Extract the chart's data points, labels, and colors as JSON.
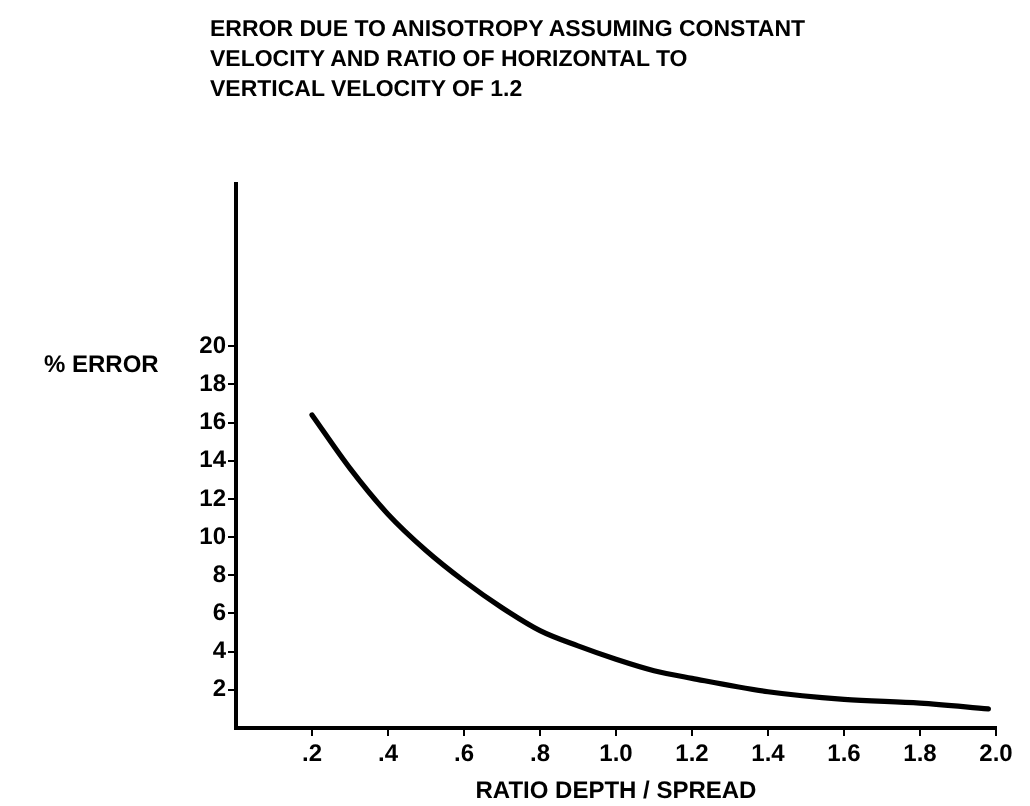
{
  "chart_data": {
    "type": "line",
    "title": "ERROR DUE TO ANISOTROPY ASSUMING CONSTANT\nVELOCITY AND RATIO OF HORIZONTAL TO\nVERTICAL VELOCITY OF 1.2",
    "xlabel": "RATIO DEPTH / SPREAD",
    "ylabel": "% ERROR",
    "x": [
      0.2,
      0.3,
      0.4,
      0.5,
      0.6,
      0.7,
      0.8,
      0.9,
      1.0,
      1.1,
      1.2,
      1.4,
      1.6,
      1.8,
      1.98
    ],
    "series": [
      {
        "color": "#000000",
        "values": [
          16.4,
          13.6,
          11.2,
          9.3,
          7.7,
          6.3,
          5.1,
          4.3,
          3.6,
          3.0,
          2.6,
          1.9,
          1.5,
          1.3,
          1.0
        ]
      }
    ],
    "xlim": [
      0,
      2.0
    ],
    "ylim": [
      0,
      28.5
    ],
    "xticks": [
      {
        "value": 0.2,
        "label": ".2"
      },
      {
        "value": 0.4,
        "label": ".4"
      },
      {
        "value": 0.6,
        "label": ".6"
      },
      {
        "value": 0.8,
        "label": ".8"
      },
      {
        "value": 1.0,
        "label": "1.0"
      },
      {
        "value": 1.2,
        "label": "1.2"
      },
      {
        "value": 1.4,
        "label": "1.4"
      },
      {
        "value": 1.6,
        "label": "1.6"
      },
      {
        "value": 1.8,
        "label": "1.8"
      },
      {
        "value": 2.0,
        "label": "2.0"
      }
    ],
    "yticks": [
      2,
      4,
      6,
      8,
      10,
      12,
      14,
      16,
      18,
      20
    ],
    "grid": false,
    "legend": false,
    "marker": "none",
    "line_style": "solid"
  }
}
